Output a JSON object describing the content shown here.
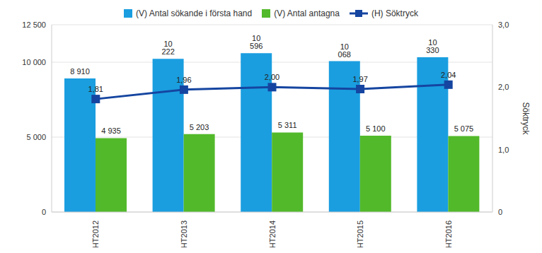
{
  "chart_data": {
    "type": "bar",
    "categories": [
      "HT2012",
      "HT2013",
      "HT2014",
      "HT2015",
      "HT2016"
    ],
    "series": [
      {
        "name": "(V) Antal sökande i första hand",
        "type": "bar",
        "color": "#1a9ee0",
        "values": [
          8910,
          10222,
          10596,
          10068,
          10330
        ],
        "value_labels": [
          "8 910",
          "10 222",
          "10 596",
          "10 068",
          "10 330"
        ]
      },
      {
        "name": "(V) Antal antagna",
        "type": "bar",
        "color": "#52b92a",
        "values": [
          4935,
          5203,
          5311,
          5100,
          5075
        ],
        "value_labels": [
          "4 935",
          "5 203",
          "5 311",
          "5 100",
          "5 075"
        ]
      },
      {
        "name": "(H) Söktryck",
        "type": "line",
        "axis": "y2",
        "marker": "square",
        "color": "#1545a0",
        "values": [
          1.81,
          1.96,
          2.0,
          1.97,
          2.04
        ],
        "value_labels": [
          "1,81",
          "1,96",
          "2,00",
          "1,97",
          "2,04"
        ]
      }
    ],
    "y2_label": "Söktryck",
    "ylim": [
      0,
      12500
    ],
    "yticks": [
      0,
      {
        "value": 5000,
        "label": "5 000"
      },
      {
        "value": 10000,
        "label": "10 000"
      },
      {
        "value": 12500,
        "label": "12 500"
      }
    ],
    "y2lim": [
      0,
      3
    ],
    "y2ticks": [
      0,
      {
        "value": 1,
        "label": "1,0"
      },
      {
        "value": 2,
        "label": "2,0"
      },
      {
        "value": 3,
        "label": "3,0"
      }
    ],
    "grid": true,
    "data_labels": true,
    "legend": "top"
  }
}
